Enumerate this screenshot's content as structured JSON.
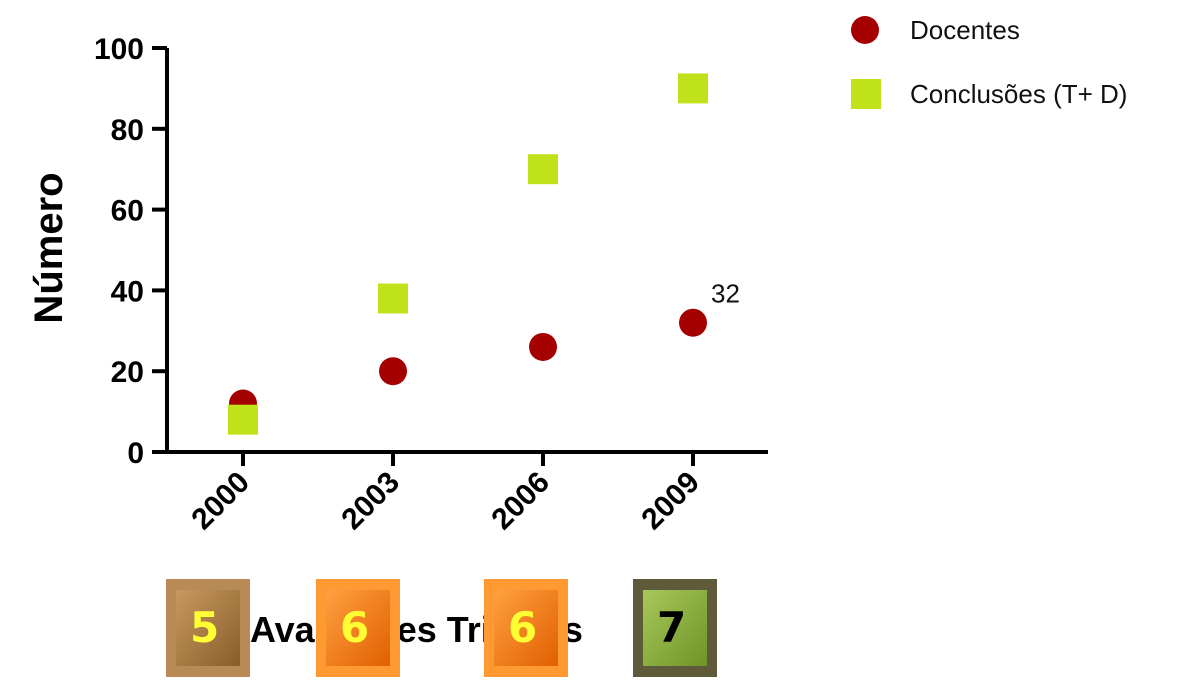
{
  "chart_data": {
    "type": "scatter",
    "categories": [
      "2000",
      "2003",
      "2006",
      "2009"
    ],
    "ylabel": "Número",
    "xlabel": "Avaliações Trienais",
    "ylim": [
      0,
      100
    ],
    "yticks": [
      "0",
      "20",
      "40",
      "60",
      "80",
      "100"
    ],
    "legend_position": "top-right",
    "series": [
      {
        "name": "Docentes",
        "marker": "circle",
        "color": "#A50000",
        "values": [
          12,
          20,
          26,
          32
        ]
      },
      {
        "name": "Conclusões (T+ D)",
        "marker": "square",
        "color": "#BFE21B",
        "values": [
          8,
          38,
          70,
          90
        ]
      }
    ],
    "annotations": [
      {
        "text": "32",
        "category": "2009",
        "series": "Docentes"
      }
    ],
    "badges": [
      {
        "text": "5",
        "category": "2000",
        "fill": "#A97A45",
        "text_color": "#FFFF33"
      },
      {
        "text": "6",
        "category": "2003",
        "fill": "#FF7F00",
        "text_color": "#FFFF33"
      },
      {
        "text": "6",
        "category": "2006",
        "fill": "#FF7F00",
        "text_color": "#FFFF33"
      },
      {
        "text": "7",
        "category": "2009",
        "fill": "#8DB43C",
        "text_color": "#000000"
      }
    ]
  }
}
